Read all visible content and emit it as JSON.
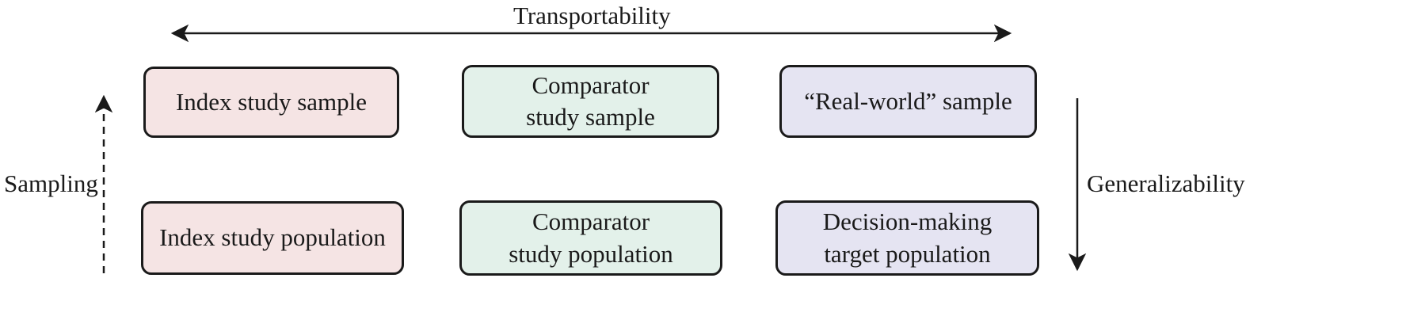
{
  "labels": {
    "transportability": "Transportability",
    "sampling": "Sampling",
    "generalizability": "Generalizability"
  },
  "boxes": {
    "index_sample": "Index study sample",
    "comparator_sample": "Comparator\nstudy sample",
    "real_world_sample": "“Real-world” sample",
    "index_population": "Index study population",
    "comparator_population": "Comparator\nstudy population",
    "decision_population": "Decision-making\ntarget population"
  },
  "colors": {
    "index": "#f5e4e4",
    "comparator": "#e3f1ea",
    "real_world": "#e5e4f2",
    "border": "#1a1a1a"
  }
}
